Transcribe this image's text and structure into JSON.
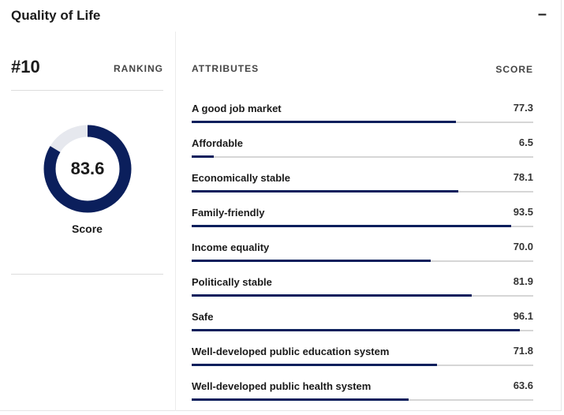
{
  "header": {
    "title": "Quality of Life",
    "collapse_icon": "–"
  },
  "left": {
    "rank": "#10",
    "rank_label": "RANKING",
    "score_value": "83.6",
    "score_fraction": 0.836,
    "score_label": "Score"
  },
  "colors": {
    "accent": "#0b1f5c",
    "track": "#d6d6d6",
    "donut_track": "#e6e8ee"
  },
  "table": {
    "attributes_header": "ATTRIBUTES",
    "score_header": "SCORE",
    "rows": [
      {
        "label": "A good job market",
        "score": "77.3",
        "value": 77.3
      },
      {
        "label": "Affordable",
        "score": "6.5",
        "value": 6.5
      },
      {
        "label": "Economically stable",
        "score": "78.1",
        "value": 78.1
      },
      {
        "label": "Family-friendly",
        "score": "93.5",
        "value": 93.5
      },
      {
        "label": "Income equality",
        "score": "70.0",
        "value": 70.0
      },
      {
        "label": "Politically stable",
        "score": "81.9",
        "value": 81.9
      },
      {
        "label": "Safe",
        "score": "96.1",
        "value": 96.1
      },
      {
        "label": "Well-developed public education system",
        "score": "71.8",
        "value": 71.8
      },
      {
        "label": "Well-developed public health system",
        "score": "63.6",
        "value": 63.6
      }
    ]
  }
}
